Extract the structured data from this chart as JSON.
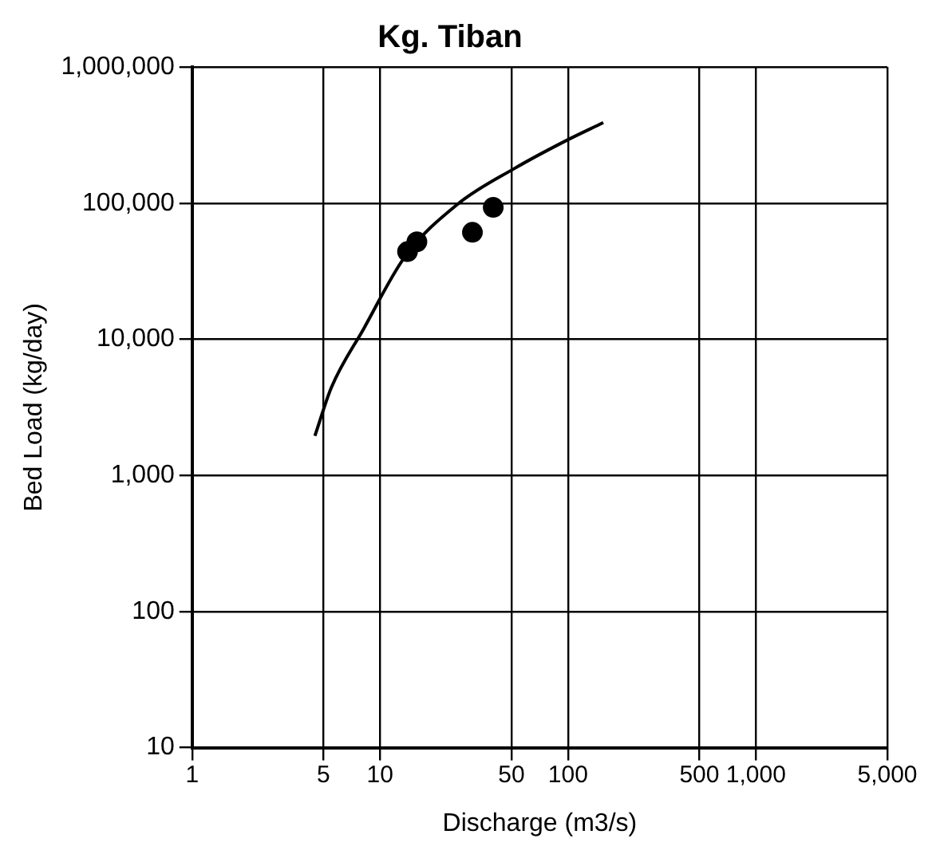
{
  "chart_data": {
    "type": "scatter",
    "title": "Kg. Tiban",
    "xlabel": "Discharge (m3/s)",
    "ylabel": "Bed Load (kg/day)",
    "log": "xy",
    "grid": true,
    "legend": false,
    "xlim": [
      1,
      5000
    ],
    "ylim": [
      10,
      1000000
    ],
    "xticks": [
      1,
      5,
      10,
      50,
      100,
      500,
      {
        "value": 1000,
        "label": "1,000"
      },
      {
        "value": 5000,
        "label": "5,000"
      }
    ],
    "yticks": [
      10,
      100,
      {
        "value": 1000,
        "label": "1,000"
      },
      {
        "value": 10000,
        "label": "10,000"
      },
      {
        "value": 100000,
        "label": "100,000"
      },
      {
        "value": 1000000,
        "label": "1,000,000"
      }
    ],
    "series": [
      {
        "type": "line",
        "marker": "none",
        "color": "#000000",
        "x": [
          4.5,
          5.5,
          8.2,
          13.5,
          25.8,
          52,
          94,
          154
        ],
        "values": [
          1950,
          4400,
          12000,
          40000,
          98000,
          180000,
          280000,
          390000
        ]
      },
      {
        "type": "scatter",
        "marker": "circle",
        "color": "#000000",
        "x": [
          14,
          15.7,
          31,
          40
        ],
        "values": [
          44000,
          52000,
          61000,
          93000
        ]
      }
    ]
  }
}
